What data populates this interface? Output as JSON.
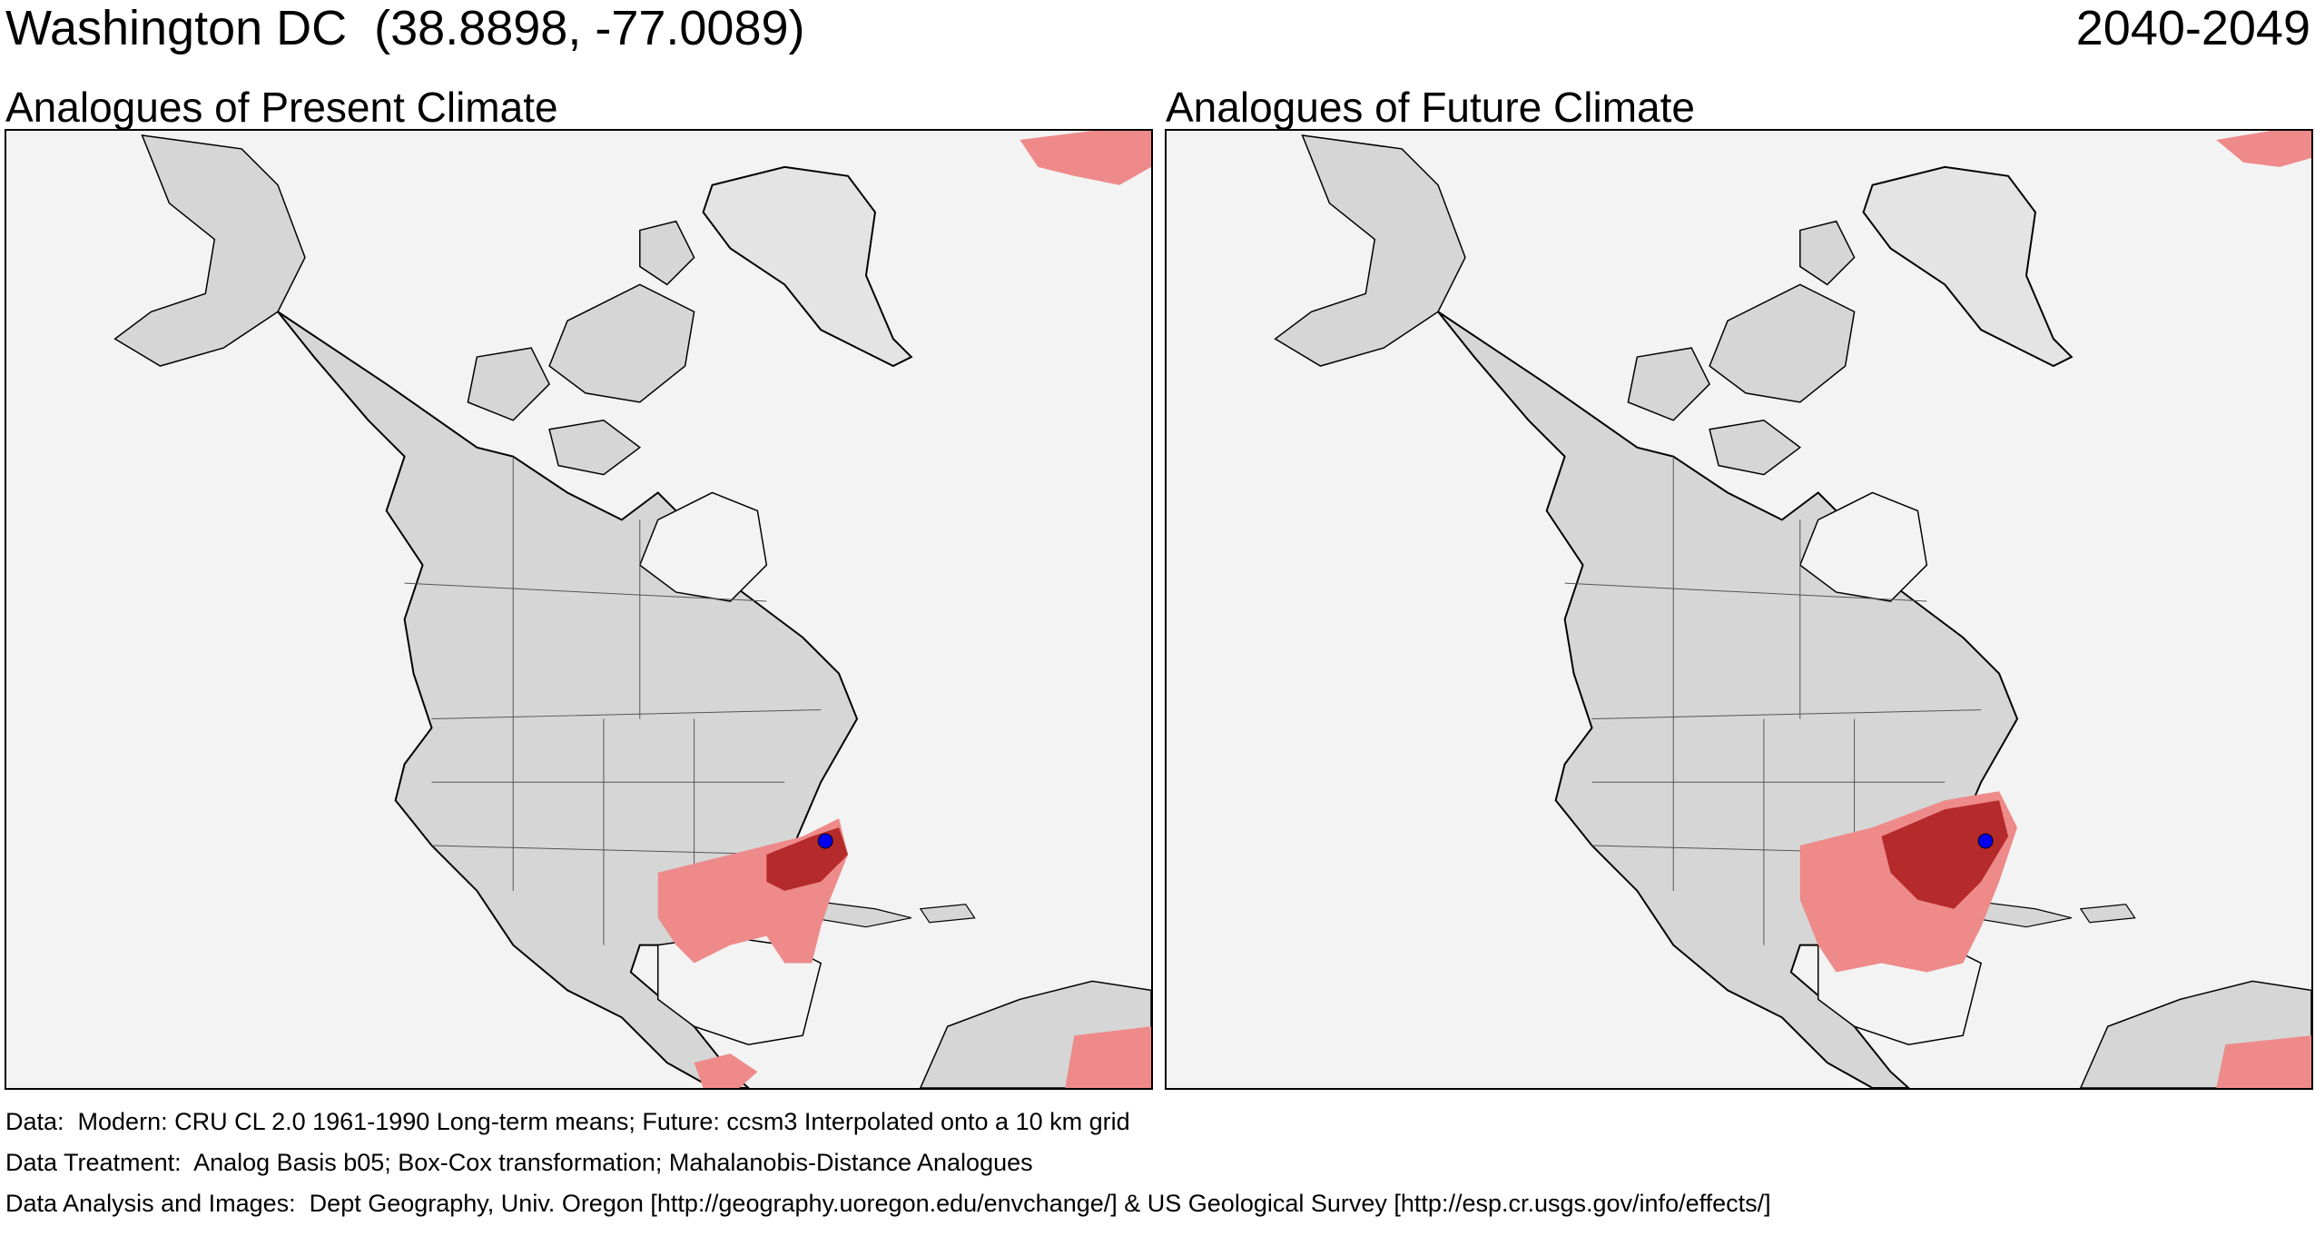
{
  "header": {
    "location": "Washington DC  (38.8898, -77.0089)",
    "period": "2040-2049"
  },
  "panels": [
    {
      "title": "Analogues of Present Climate"
    },
    {
      "title": "Analogues of Future Climate"
    }
  ],
  "map": {
    "land_color": "#d6d6d6",
    "water_color": "#f3f3f3",
    "analogue_light_color": "#ee8a8a",
    "analogue_dark_color": "#b52a2a",
    "site_marker_color": "#0000ee",
    "site_marker": "circle-marker-icon"
  },
  "footer": {
    "data": "Data:  Modern: CRU CL 2.0 1961-1990 Long-term means; Future: ccsm3 Interpolated onto a 10 km grid",
    "treatment": "Data Treatment:  Analog Basis b05; Box-Cox transformation; Mahalanobis-Distance Analogues",
    "analysis": "Data Analysis and Images:  Dept Geography, Univ. Oregon [http://geography.uoregon.edu/envchange/] & US Geological Survey [http://esp.cr.usgs.gov/info/effects/]"
  }
}
